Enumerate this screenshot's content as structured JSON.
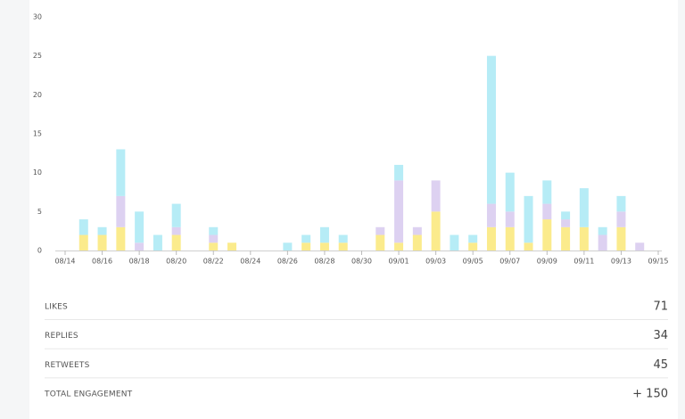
{
  "chart_data": {
    "type": "stacked-bar",
    "categories": [
      "08/14",
      null,
      "08/16",
      null,
      "08/18",
      null,
      "08/20",
      null,
      "08/22",
      null,
      "08/24",
      null,
      "08/26",
      null,
      "08/28",
      null,
      "08/30",
      null,
      "09/01",
      null,
      "09/03",
      null,
      "09/05",
      null,
      "09/07",
      null,
      "09/09",
      null,
      "09/11",
      null,
      "09/13",
      null,
      "09/15"
    ],
    "series": [
      {
        "color": "#fbeb8c",
        "values": [
          0,
          2,
          2,
          3,
          0,
          0,
          2,
          0,
          1,
          1,
          0,
          0,
          0,
          1,
          1,
          1,
          0,
          2,
          1,
          2,
          5,
          0,
          1,
          3,
          3,
          1,
          4,
          3,
          3,
          0,
          3,
          0,
          0
        ]
      },
      {
        "color": "#ddd1f1",
        "values": [
          0,
          0,
          0,
          4,
          1,
          0,
          1,
          0,
          1,
          0,
          0,
          0,
          0,
          0,
          0,
          0,
          0,
          1,
          8,
          1,
          4,
          0,
          0,
          3,
          2,
          0,
          2,
          1,
          0,
          2,
          2,
          1,
          0
        ]
      },
      {
        "color": "#b6ecf6",
        "values": [
          0,
          2,
          1,
          6,
          4,
          2,
          3,
          0,
          1,
          0,
          0,
          0,
          1,
          1,
          2,
          1,
          0,
          0,
          2,
          0,
          0,
          2,
          1,
          19,
          5,
          6,
          3,
          1,
          5,
          1,
          2,
          0,
          0
        ]
      }
    ],
    "ylim": [
      0,
      30
    ],
    "yticks": [
      0,
      5,
      10,
      15,
      20,
      25,
      30
    ],
    "grid": false
  },
  "table": {
    "rows": [
      [
        "LIKES",
        "71"
      ],
      [
        "REPLIES",
        "34"
      ],
      [
        "RETWEETS",
        "45"
      ],
      [
        "TOTAL ENGAGEMENT",
        "+ 150"
      ]
    ]
  }
}
